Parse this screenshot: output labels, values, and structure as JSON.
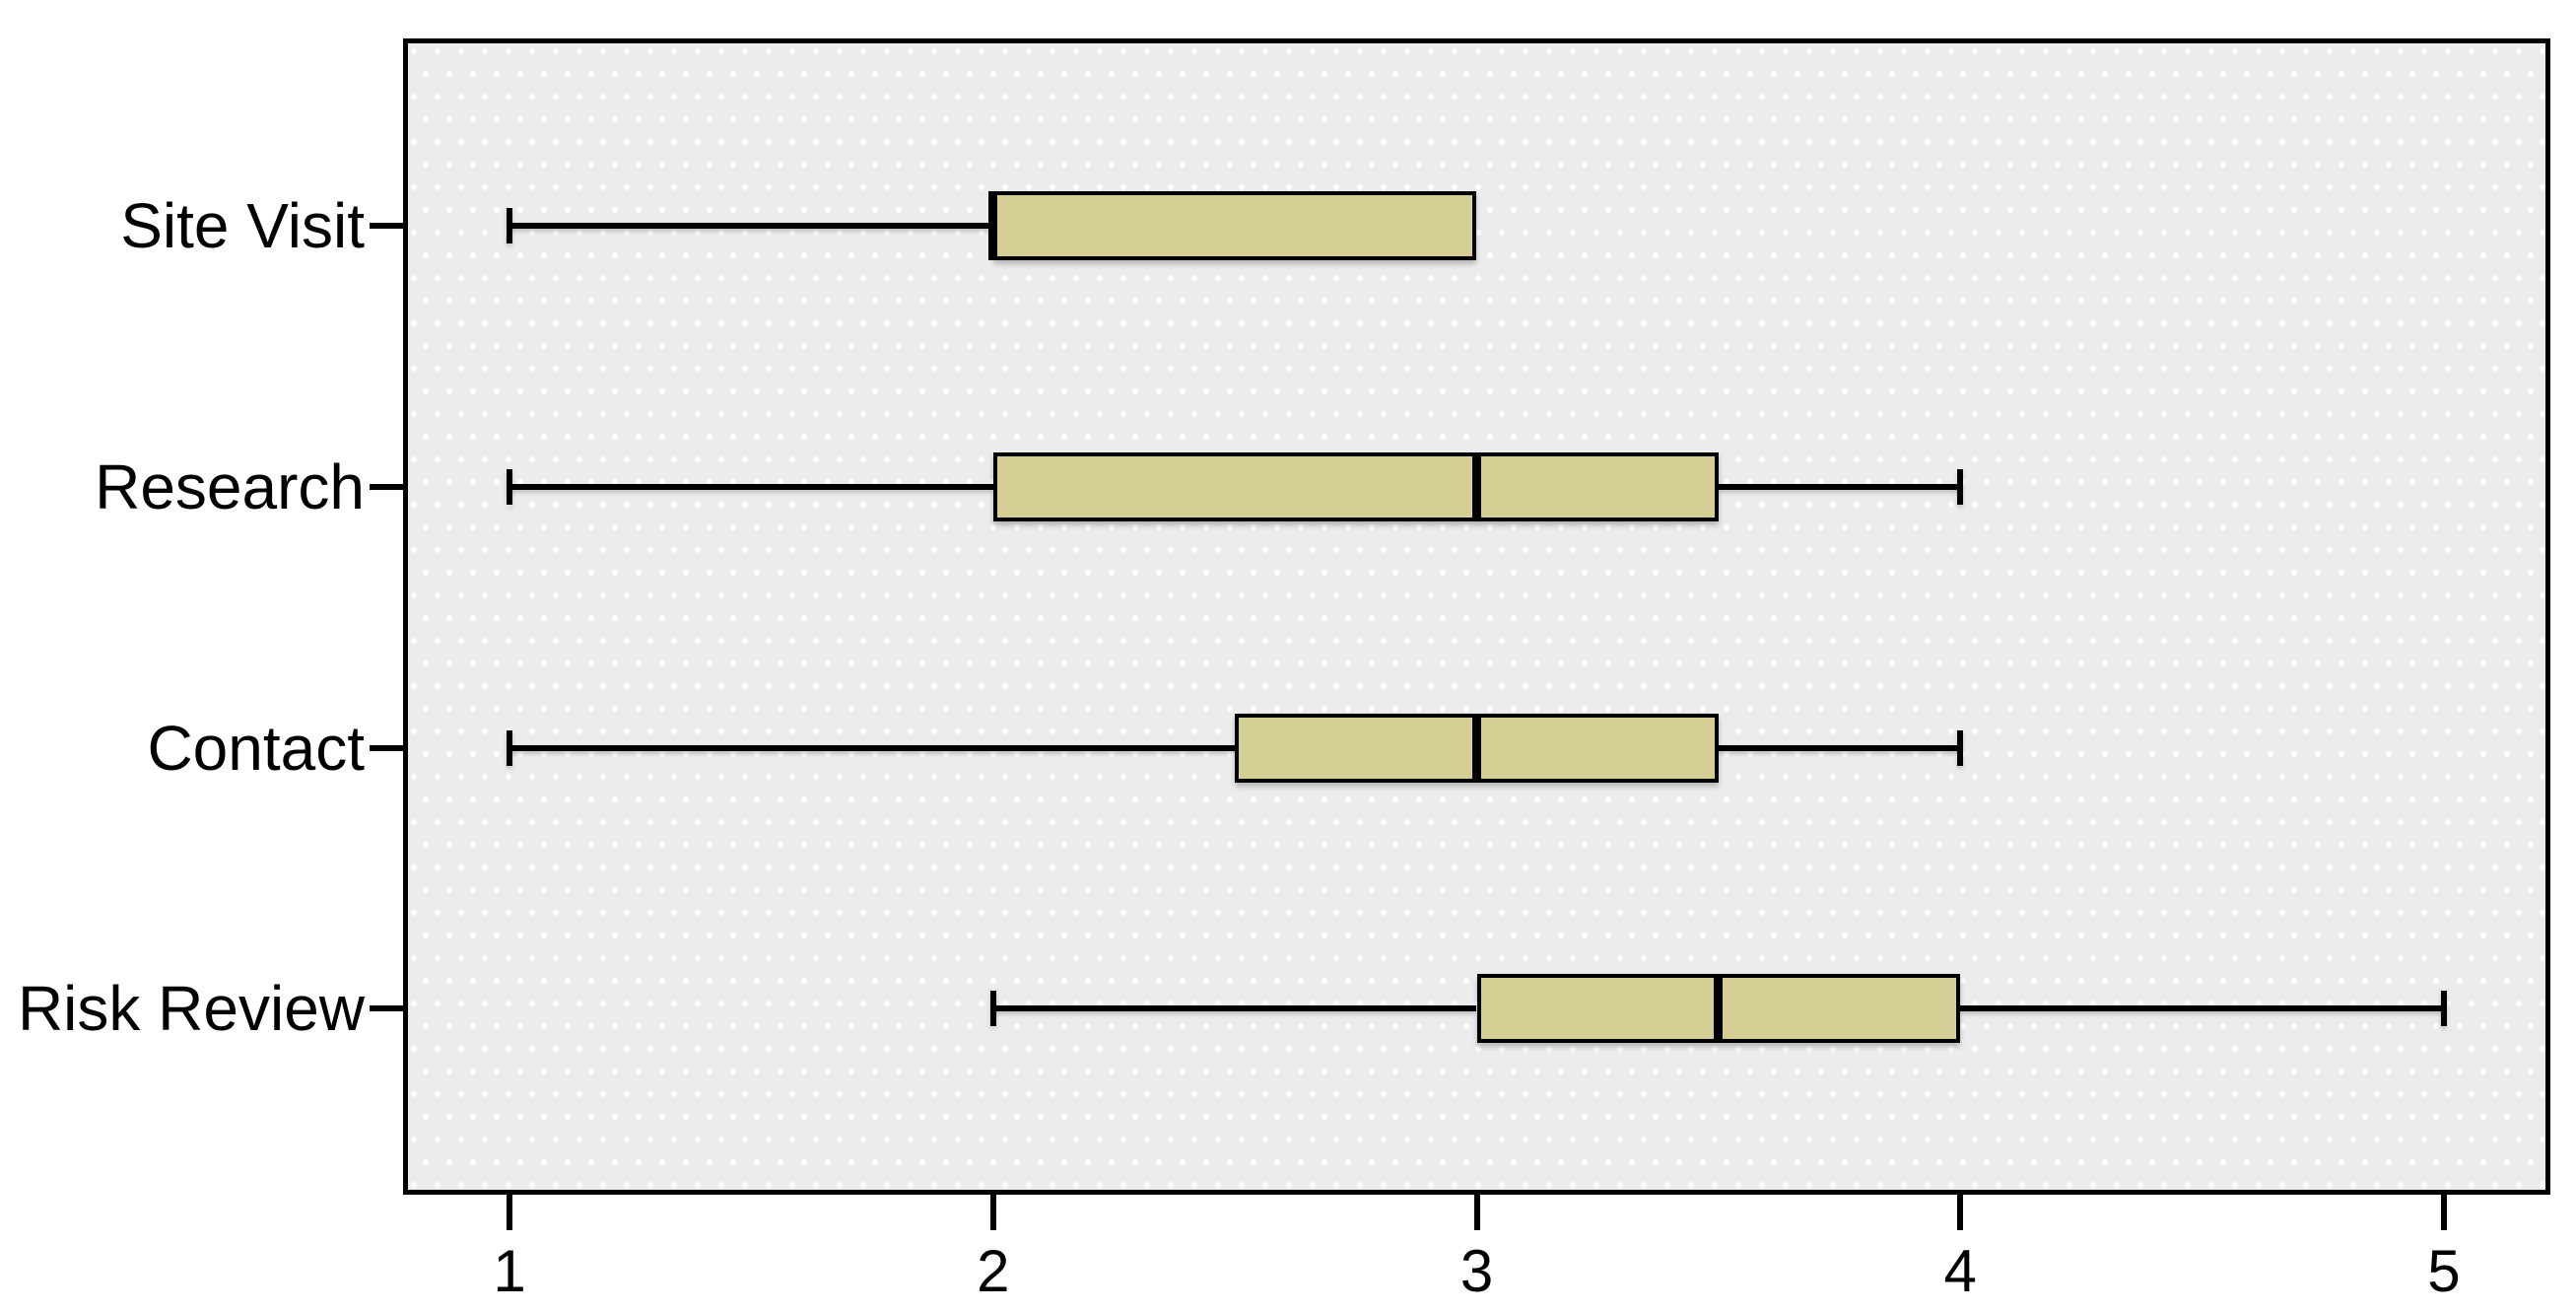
{
  "figure": {
    "outer_background": "#ffffff",
    "plot_background": "#ececec",
    "plot_texture": "staggered white dots",
    "frame_color": "#000000",
    "text_color": "#000000"
  },
  "chart_data": {
    "type": "boxplot",
    "orientation": "horizontal",
    "title": "",
    "xlabel": "",
    "ylabel": "",
    "grid": false,
    "legend": false,
    "categories": [
      "Site Visit",
      "Research",
      "Contact",
      "Risk Review"
    ],
    "series": [
      {
        "name": "Site Visit",
        "whisker_low": 1,
        "q1": 2,
        "median": 2,
        "q3": 3,
        "whisker_high": 3
      },
      {
        "name": "Research",
        "whisker_low": 1,
        "q1": 2,
        "median": 3,
        "q3": 3.5,
        "whisker_high": 4
      },
      {
        "name": "Contact",
        "whisker_low": 1,
        "q1": 2.5,
        "median": 3,
        "q3": 3.5,
        "whisker_high": 4
      },
      {
        "name": "Risk Review",
        "whisker_low": 2,
        "q1": 3,
        "median": 3.5,
        "q3": 4,
        "whisker_high": 5
      }
    ],
    "x_ticks": [
      "1",
      "2",
      "3",
      "4",
      "5"
    ],
    "x_tick_values": [
      1,
      2,
      3,
      4,
      5
    ],
    "x_range_displayed": [
      0.79,
      5.21
    ],
    "box_fill": "#d5cf96",
    "box_border": "#000000",
    "median_color": "#000000",
    "whisker_color": "#000000"
  }
}
